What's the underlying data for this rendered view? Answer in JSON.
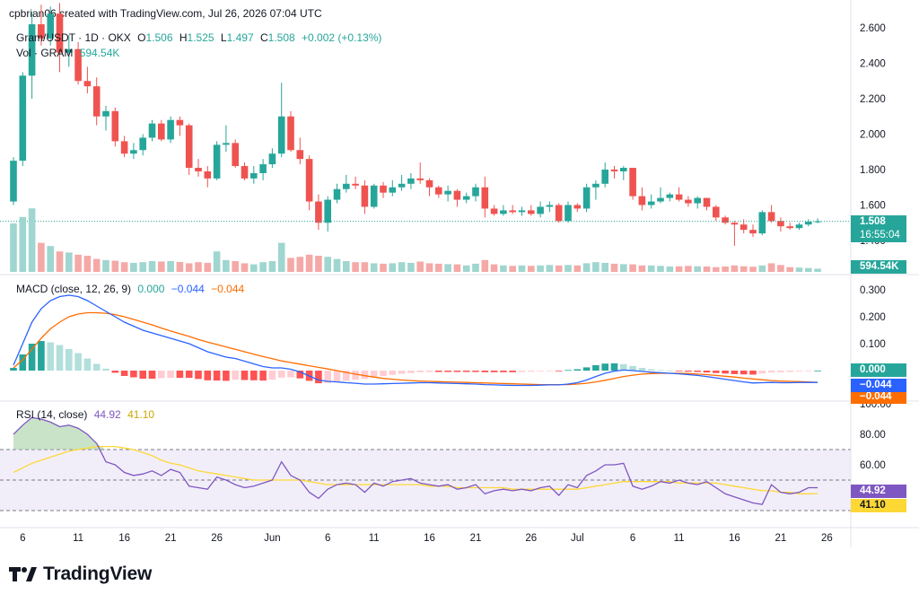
{
  "header": {
    "credit": "cpbrian06 created with TradingView.com, Jul 26, 2026 07:04 UTC"
  },
  "symbol": {
    "name": "Gram/USDT · 1D · OKX",
    "open_label": "O",
    "open": "1.506",
    "high_label": "H",
    "high": "1.525",
    "low_label": "L",
    "low": "1.497",
    "close_label": "C",
    "close": "1.508",
    "change": "+0.002 (+0.13%)",
    "vol_label": "Vol · GRAM",
    "vol_value": "594.54K"
  },
  "price_tag": {
    "price": "1.508",
    "countdown": "16:55:04"
  },
  "volume_tag": "594.54K",
  "macd_legend": {
    "title": "MACD (close, 12, 26, 9)",
    "hist": "0.000",
    "macd": "−0.044",
    "signal": "−0.044"
  },
  "macd_tags": {
    "hist": "0.000",
    "macd": "−0.044",
    "signal": "−0.044"
  },
  "rsi_legend": {
    "title": "RSI (14, close)",
    "rsi": "44.92",
    "ma": "41.10"
  },
  "rsi_tags": {
    "rsi": "44.92",
    "ma": "41.10"
  },
  "logo": {
    "text": "TradingView"
  },
  "colors": {
    "up": "#26a69a",
    "down": "#ef5350",
    "vol_up": "#9fd6cf",
    "vol_down": "#f5a9a7",
    "macd_line": "#2962ff",
    "signal_line": "#ff6d00",
    "rsi_line": "#7e57c2",
    "rsi_ma": "#fdd835",
    "rsi_band": "#ede7f6"
  },
  "chart_data": [
    {
      "type": "candlestick",
      "title": "Gram/USDT · 1D · OKX",
      "x_ticks": [
        "6",
        "11",
        "16",
        "21",
        "26",
        "Jun",
        "6",
        "11",
        "16",
        "21",
        "26",
        "Jul",
        "6",
        "11",
        "16",
        "21",
        "26"
      ],
      "y_ticks": [
        "2.600",
        "2.400",
        "2.200",
        "2.000",
        "1.800",
        "1.600",
        "1.400"
      ],
      "ylim": [
        1.38,
        2.62
      ],
      "ohlc": [
        [
          1.62,
          1.87,
          1.6,
          1.85
        ],
        [
          1.85,
          2.35,
          1.82,
          2.33
        ],
        [
          2.33,
          2.69,
          2.2,
          2.62
        ],
        [
          2.62,
          2.73,
          2.5,
          2.54
        ],
        [
          2.54,
          2.72,
          2.5,
          2.68
        ],
        [
          2.68,
          2.74,
          2.35,
          2.46
        ],
        [
          2.46,
          2.56,
          2.38,
          2.48
        ],
        [
          2.48,
          2.52,
          2.28,
          2.3
        ],
        [
          2.3,
          2.38,
          2.23,
          2.27
        ],
        [
          2.27,
          2.32,
          2.05,
          2.1
        ],
        [
          2.1,
          2.16,
          2.02,
          2.13
        ],
        [
          2.13,
          2.15,
          1.93,
          1.96
        ],
        [
          1.96,
          1.99,
          1.87,
          1.89
        ],
        [
          1.89,
          1.95,
          1.86,
          1.91
        ],
        [
          1.91,
          2.0,
          1.88,
          1.98
        ],
        [
          1.98,
          2.08,
          1.96,
          2.06
        ],
        [
          2.06,
          2.08,
          1.96,
          1.97
        ],
        [
          1.97,
          2.1,
          1.95,
          2.08
        ],
        [
          2.08,
          2.1,
          1.99,
          2.05
        ],
        [
          2.05,
          2.06,
          1.77,
          1.81
        ],
        [
          1.81,
          1.86,
          1.76,
          1.79
        ],
        [
          1.79,
          1.82,
          1.7,
          1.75
        ],
        [
          1.75,
          1.96,
          1.74,
          1.94
        ],
        [
          1.94,
          2.05,
          1.9,
          1.95
        ],
        [
          1.95,
          1.97,
          1.81,
          1.82
        ],
        [
          1.82,
          1.84,
          1.74,
          1.75
        ],
        [
          1.75,
          1.82,
          1.72,
          1.78
        ],
        [
          1.78,
          1.86,
          1.74,
          1.83
        ],
        [
          1.83,
          1.92,
          1.81,
          1.89
        ],
        [
          1.89,
          2.29,
          1.87,
          2.1
        ],
        [
          2.1,
          2.13,
          1.9,
          1.91
        ],
        [
          1.91,
          1.98,
          1.83,
          1.86
        ],
        [
          1.86,
          1.88,
          1.57,
          1.62
        ],
        [
          1.62,
          1.66,
          1.46,
          1.5
        ],
        [
          1.5,
          1.65,
          1.45,
          1.63
        ],
        [
          1.63,
          1.72,
          1.61,
          1.69
        ],
        [
          1.69,
          1.77,
          1.67,
          1.72
        ],
        [
          1.72,
          1.76,
          1.69,
          1.71
        ],
        [
          1.71,
          1.74,
          1.55,
          1.59
        ],
        [
          1.59,
          1.72,
          1.58,
          1.71
        ],
        [
          1.71,
          1.73,
          1.64,
          1.67
        ],
        [
          1.67,
          1.74,
          1.65,
          1.7
        ],
        [
          1.7,
          1.77,
          1.68,
          1.72
        ],
        [
          1.72,
          1.78,
          1.69,
          1.75
        ],
        [
          1.75,
          1.84,
          1.72,
          1.74
        ],
        [
          1.74,
          1.75,
          1.65,
          1.7
        ],
        [
          1.7,
          1.71,
          1.64,
          1.66
        ],
        [
          1.66,
          1.71,
          1.62,
          1.68
        ],
        [
          1.68,
          1.69,
          1.59,
          1.63
        ],
        [
          1.63,
          1.67,
          1.61,
          1.65
        ],
        [
          1.65,
          1.72,
          1.62,
          1.7
        ],
        [
          1.7,
          1.76,
          1.53,
          1.58
        ],
        [
          1.58,
          1.6,
          1.54,
          1.55
        ],
        [
          1.55,
          1.6,
          1.54,
          1.57
        ],
        [
          1.57,
          1.6,
          1.55,
          1.56
        ],
        [
          1.56,
          1.59,
          1.54,
          1.57
        ],
        [
          1.57,
          1.6,
          1.54,
          1.55
        ],
        [
          1.55,
          1.62,
          1.53,
          1.59
        ],
        [
          1.59,
          1.62,
          1.56,
          1.6
        ],
        [
          1.6,
          1.61,
          1.5,
          1.51
        ],
        [
          1.51,
          1.62,
          1.5,
          1.6
        ],
        [
          1.6,
          1.61,
          1.56,
          1.58
        ],
        [
          1.58,
          1.72,
          1.56,
          1.7
        ],
        [
          1.7,
          1.74,
          1.63,
          1.72
        ],
        [
          1.72,
          1.84,
          1.7,
          1.8
        ],
        [
          1.8,
          1.82,
          1.75,
          1.79
        ],
        [
          1.79,
          1.82,
          1.74,
          1.81
        ],
        [
          1.81,
          1.81,
          1.63,
          1.65
        ],
        [
          1.65,
          1.7,
          1.57,
          1.6
        ],
        [
          1.6,
          1.66,
          1.58,
          1.62
        ],
        [
          1.62,
          1.7,
          1.61,
          1.64
        ],
        [
          1.64,
          1.67,
          1.62,
          1.66
        ],
        [
          1.66,
          1.7,
          1.62,
          1.63
        ],
        [
          1.63,
          1.65,
          1.59,
          1.61
        ],
        [
          1.61,
          1.65,
          1.58,
          1.64
        ],
        [
          1.64,
          1.64,
          1.57,
          1.59
        ],
        [
          1.59,
          1.6,
          1.51,
          1.53
        ],
        [
          1.53,
          1.54,
          1.49,
          1.5
        ],
        [
          1.5,
          1.51,
          1.37,
          1.49
        ],
        [
          1.49,
          1.52,
          1.44,
          1.46
        ],
        [
          1.46,
          1.49,
          1.42,
          1.44
        ],
        [
          1.44,
          1.57,
          1.43,
          1.56
        ],
        [
          1.56,
          1.6,
          1.5,
          1.51
        ],
        [
          1.51,
          1.53,
          1.45,
          1.48
        ],
        [
          1.48,
          1.5,
          1.46,
          1.47
        ],
        [
          1.47,
          1.5,
          1.46,
          1.49
        ],
        [
          1.49,
          1.52,
          1.48,
          1.506
        ],
        [
          1.506,
          1.525,
          1.497,
          1.508
        ]
      ],
      "volume": [
        2.25,
        2.55,
        2.95,
        1.35,
        1.2,
        0.95,
        0.9,
        0.8,
        0.75,
        0.6,
        0.55,
        0.52,
        0.45,
        0.42,
        0.45,
        0.5,
        0.48,
        0.5,
        0.46,
        0.4,
        0.45,
        0.42,
        0.95,
        0.55,
        0.5,
        0.4,
        0.35,
        0.45,
        0.5,
        1.35,
        0.65,
        0.7,
        0.8,
        0.75,
        0.7,
        0.6,
        0.5,
        0.45,
        0.45,
        0.4,
        0.38,
        0.4,
        0.45,
        0.42,
        0.48,
        0.4,
        0.38,
        0.36,
        0.35,
        0.3,
        0.38,
        0.55,
        0.35,
        0.3,
        0.28,
        0.3,
        0.28,
        0.3,
        0.32,
        0.3,
        0.32,
        0.3,
        0.4,
        0.45,
        0.42,
        0.38,
        0.36,
        0.35,
        0.3,
        0.3,
        0.28,
        0.25,
        0.26,
        0.28,
        0.26,
        0.25,
        0.22,
        0.25,
        0.3,
        0.26,
        0.24,
        0.3,
        0.4,
        0.32,
        0.22,
        0.2,
        0.18,
        0.15
      ]
    },
    {
      "type": "line",
      "title": "MACD (close, 12, 26, 9)",
      "y_ticks": [
        "0.300",
        "0.200",
        "0.100"
      ],
      "ylim": [
        -0.11,
        0.33
      ],
      "series": [
        {
          "name": "MACD",
          "values": [
            0.02,
            0.1,
            0.18,
            0.23,
            0.26,
            0.275,
            0.28,
            0.275,
            0.26,
            0.24,
            0.22,
            0.2,
            0.18,
            0.165,
            0.15,
            0.14,
            0.13,
            0.12,
            0.11,
            0.1,
            0.085,
            0.07,
            0.06,
            0.05,
            0.045,
            0.035,
            0.025,
            0.015,
            0.01,
            0.01,
            0.005,
            -0.005,
            -0.02,
            -0.035,
            -0.04,
            -0.042,
            -0.045,
            -0.047,
            -0.05,
            -0.05,
            -0.049,
            -0.048,
            -0.047,
            -0.046,
            -0.045,
            -0.045,
            -0.046,
            -0.047,
            -0.048,
            -0.049,
            -0.05,
            -0.052,
            -0.053,
            -0.054,
            -0.055,
            -0.055,
            -0.055,
            -0.054,
            -0.053,
            -0.053,
            -0.05,
            -0.045,
            -0.035,
            -0.022,
            -0.01,
            -0.002,
            0.002,
            0.0,
            -0.003,
            -0.006,
            -0.008,
            -0.01,
            -0.012,
            -0.015,
            -0.018,
            -0.022,
            -0.027,
            -0.032,
            -0.037,
            -0.042,
            -0.046,
            -0.045,
            -0.044,
            -0.045,
            -0.045,
            -0.044,
            -0.044,
            -0.044
          ]
        },
        {
          "name": "Signal",
          "values": [
            0.01,
            0.04,
            0.08,
            0.12,
            0.155,
            0.18,
            0.2,
            0.21,
            0.215,
            0.215,
            0.213,
            0.208,
            0.2,
            0.19,
            0.18,
            0.17,
            0.158,
            0.147,
            0.137,
            0.127,
            0.116,
            0.106,
            0.097,
            0.088,
            0.079,
            0.07,
            0.061,
            0.052,
            0.044,
            0.036,
            0.03,
            0.024,
            0.018,
            0.012,
            0.006,
            0.0,
            -0.007,
            -0.013,
            -0.019,
            -0.024,
            -0.029,
            -0.032,
            -0.035,
            -0.037,
            -0.039,
            -0.04,
            -0.041,
            -0.042,
            -0.043,
            -0.044,
            -0.045,
            -0.046,
            -0.047,
            -0.048,
            -0.049,
            -0.05,
            -0.051,
            -0.052,
            -0.052,
            -0.052,
            -0.052,
            -0.05,
            -0.047,
            -0.042,
            -0.036,
            -0.029,
            -0.022,
            -0.017,
            -0.013,
            -0.011,
            -0.01,
            -0.01,
            -0.01,
            -0.011,
            -0.013,
            -0.015,
            -0.018,
            -0.021,
            -0.024,
            -0.028,
            -0.031,
            -0.034,
            -0.037,
            -0.039,
            -0.04,
            -0.041,
            -0.042,
            -0.044
          ]
        },
        {
          "name": "Histogram",
          "values": [
            0.01,
            0.06,
            0.1,
            0.11,
            0.105,
            0.095,
            0.08,
            0.065,
            0.045,
            0.025,
            0.007,
            -0.008,
            -0.02,
            -0.025,
            -0.03,
            -0.03,
            -0.028,
            -0.027,
            -0.027,
            -0.027,
            -0.031,
            -0.036,
            -0.037,
            -0.038,
            -0.034,
            -0.035,
            -0.036,
            -0.037,
            -0.034,
            -0.026,
            -0.025,
            -0.029,
            -0.038,
            -0.047,
            -0.046,
            -0.042,
            -0.038,
            -0.034,
            -0.031,
            -0.026,
            -0.02,
            -0.016,
            -0.012,
            -0.009,
            -0.006,
            -0.005,
            -0.005,
            -0.005,
            -0.005,
            -0.005,
            -0.005,
            -0.006,
            -0.006,
            -0.006,
            -0.006,
            -0.005,
            -0.004,
            -0.002,
            -0.001,
            -0.001,
            0.002,
            0.005,
            0.012,
            0.02,
            0.026,
            0.027,
            0.024,
            0.017,
            0.01,
            0.005,
            0.002,
            0.0,
            -0.002,
            -0.004,
            -0.005,
            -0.007,
            -0.009,
            -0.011,
            -0.013,
            -0.014,
            -0.015,
            -0.011,
            -0.007,
            -0.006,
            -0.005,
            -0.003,
            -0.002,
            0.0
          ]
        }
      ]
    },
    {
      "type": "line",
      "title": "RSI (14, close)",
      "y_ticks": [
        "100.00",
        "80.00",
        "60.00"
      ],
      "ylim": [
        17,
        100
      ],
      "bands": [
        30,
        50,
        70
      ],
      "series": [
        {
          "name": "RSI",
          "values": [
            80,
            86,
            91,
            90,
            88,
            85,
            86,
            84,
            80,
            74,
            62,
            60,
            55,
            53,
            54,
            56,
            53,
            57,
            55,
            46,
            45,
            44,
            52,
            50,
            47,
            45,
            46,
            48,
            50,
            62,
            53,
            50,
            42,
            38,
            44,
            47,
            48,
            47,
            42,
            48,
            46,
            49,
            50,
            51,
            48,
            47,
            46,
            47,
            44,
            45,
            47,
            41,
            43,
            44,
            43,
            44,
            43,
            45,
            46,
            40,
            47,
            45,
            53,
            56,
            60,
            60,
            61,
            46,
            44,
            46,
            49,
            48,
            50,
            48,
            47,
            49,
            45,
            41,
            39,
            37,
            35,
            34,
            47,
            42,
            41,
            42,
            45,
            45
          ]
        },
        {
          "name": "RSI MA",
          "values": [
            55,
            58,
            61,
            63,
            65,
            67,
            69,
            70,
            71,
            72,
            72,
            72,
            71,
            70,
            68,
            66,
            63,
            61,
            60,
            58,
            56,
            55,
            54,
            53,
            52,
            51,
            50,
            50,
            50,
            50,
            50,
            50,
            49,
            48,
            47,
            47,
            47,
            47,
            47,
            47,
            47,
            47,
            47,
            47,
            47,
            46,
            46,
            46,
            45,
            45,
            45,
            45,
            45,
            45,
            44,
            44,
            44,
            44,
            44,
            44,
            44,
            44,
            45,
            46,
            47,
            48,
            49,
            49,
            49,
            49,
            49,
            49,
            48,
            48,
            48,
            48,
            48,
            47,
            46,
            45,
            44,
            43,
            43,
            42,
            42,
            41,
            41,
            41.1
          ]
        }
      ]
    }
  ]
}
